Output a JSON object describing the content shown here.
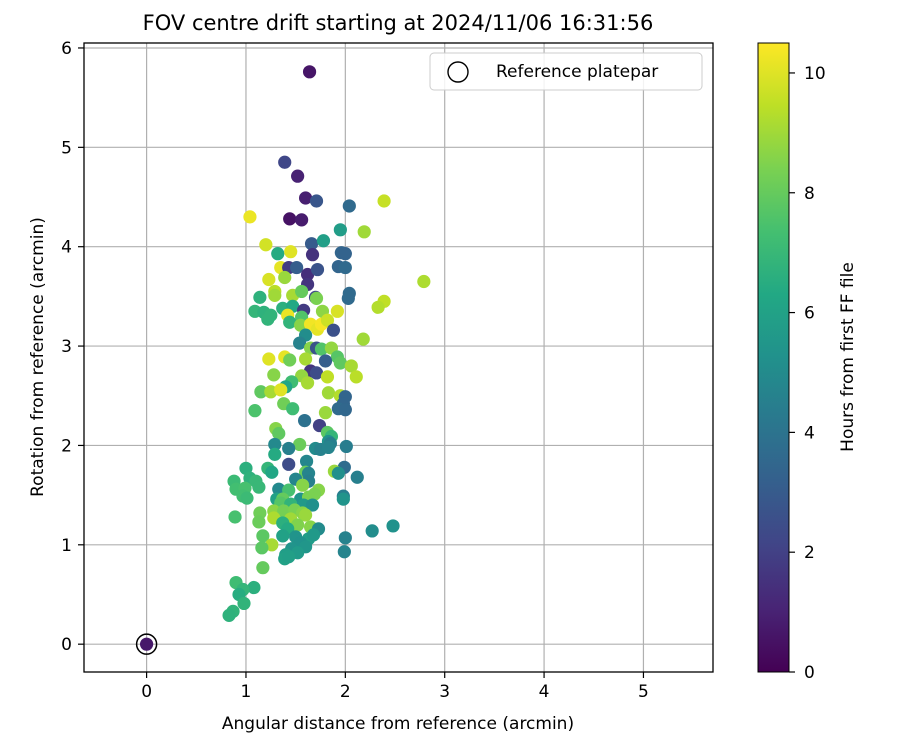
{
  "chart_data": {
    "type": "scatter",
    "title": "FOV centre drift starting at 2024/11/06 16:31:56",
    "xlabel": "Angular distance from reference (arcmin)",
    "ylabel": "Rotation from reference (arcmin)",
    "xlim": [
      -0.63,
      5.7
    ],
    "ylim": [
      -0.28,
      6.05
    ],
    "x_ticks": [
      0,
      1,
      2,
      3,
      4,
      5
    ],
    "y_ticks": [
      0,
      1,
      2,
      3,
      4,
      5,
      6
    ],
    "grid": true,
    "legend": {
      "placement": "top-right",
      "entries": [
        "Reference platepar"
      ]
    },
    "colorbar": {
      "label": "Hours from first FF file",
      "range": [
        0,
        10.5
      ],
      "ticks": [
        0,
        2,
        4,
        6,
        8,
        10
      ],
      "colormap": "viridis"
    },
    "reference_point": {
      "x": 0,
      "y": 0,
      "c": 0
    },
    "series": [
      {
        "points": [
          {
            "x": 1.64,
            "y": 5.76,
            "c": 0.6
          },
          {
            "x": 1.39,
            "y": 4.85,
            "c": 2.2
          },
          {
            "x": 1.52,
            "y": 4.71,
            "c": 1.0
          },
          {
            "x": 1.6,
            "y": 4.49,
            "c": 0.9
          },
          {
            "x": 1.71,
            "y": 4.46,
            "c": 2.8
          },
          {
            "x": 1.44,
            "y": 4.28,
            "c": 0.5
          },
          {
            "x": 1.56,
            "y": 4.27,
            "c": 0.8
          },
          {
            "x": 2.04,
            "y": 4.41,
            "c": 3.6
          },
          {
            "x": 1.04,
            "y": 4.3,
            "c": 10.2
          },
          {
            "x": 2.39,
            "y": 4.46,
            "c": 9.6
          },
          {
            "x": 2.19,
            "y": 4.15,
            "c": 9.0
          },
          {
            "x": 1.95,
            "y": 4.17,
            "c": 5.8
          },
          {
            "x": 1.2,
            "y": 4.02,
            "c": 9.8
          },
          {
            "x": 1.32,
            "y": 3.93,
            "c": 6.4
          },
          {
            "x": 1.45,
            "y": 3.95,
            "c": 10.0
          },
          {
            "x": 1.66,
            "y": 4.03,
            "c": 3.0
          },
          {
            "x": 1.78,
            "y": 4.06,
            "c": 5.9
          },
          {
            "x": 1.96,
            "y": 3.94,
            "c": 3.4
          },
          {
            "x": 2.0,
            "y": 3.93,
            "c": 3.3
          },
          {
            "x": 1.67,
            "y": 3.92,
            "c": 1.5
          },
          {
            "x": 1.35,
            "y": 3.79,
            "c": 10.1
          },
          {
            "x": 1.43,
            "y": 3.79,
            "c": 1.8
          },
          {
            "x": 1.51,
            "y": 3.79,
            "c": 3.1
          },
          {
            "x": 1.62,
            "y": 3.72,
            "c": 1.4
          },
          {
            "x": 1.72,
            "y": 3.77,
            "c": 2.7
          },
          {
            "x": 1.93,
            "y": 3.8,
            "c": 3.4
          },
          {
            "x": 2.0,
            "y": 3.79,
            "c": 3.6
          },
          {
            "x": 2.79,
            "y": 3.65,
            "c": 9.2
          },
          {
            "x": 1.23,
            "y": 3.67,
            "c": 9.9
          },
          {
            "x": 1.39,
            "y": 3.69,
            "c": 8.9
          },
          {
            "x": 1.62,
            "y": 3.62,
            "c": 1.6
          },
          {
            "x": 1.29,
            "y": 3.55,
            "c": 9.4
          },
          {
            "x": 1.47,
            "y": 3.51,
            "c": 9.1
          },
          {
            "x": 1.56,
            "y": 3.55,
            "c": 8.0
          },
          {
            "x": 1.7,
            "y": 3.49,
            "c": 2.3
          },
          {
            "x": 1.14,
            "y": 3.49,
            "c": 6.7
          },
          {
            "x": 1.29,
            "y": 3.51,
            "c": 9.0
          },
          {
            "x": 1.71,
            "y": 3.48,
            "c": 8.4
          },
          {
            "x": 2.04,
            "y": 3.53,
            "c": 3.6
          },
          {
            "x": 2.03,
            "y": 3.48,
            "c": 3.6
          },
          {
            "x": 2.39,
            "y": 3.45,
            "c": 9.5
          },
          {
            "x": 2.33,
            "y": 3.39,
            "c": 9.3
          },
          {
            "x": 1.09,
            "y": 3.35,
            "c": 6.9
          },
          {
            "x": 1.18,
            "y": 3.34,
            "c": 6.7
          },
          {
            "x": 1.25,
            "y": 3.31,
            "c": 6.8
          },
          {
            "x": 1.37,
            "y": 3.38,
            "c": 6.6
          },
          {
            "x": 1.47,
            "y": 3.4,
            "c": 6.3
          },
          {
            "x": 1.58,
            "y": 3.36,
            "c": 1.8
          },
          {
            "x": 1.42,
            "y": 3.31,
            "c": 10.2
          },
          {
            "x": 1.56,
            "y": 3.29,
            "c": 7.6
          },
          {
            "x": 1.77,
            "y": 3.35,
            "c": 8.7
          },
          {
            "x": 1.92,
            "y": 3.35,
            "c": 9.9
          },
          {
            "x": 1.22,
            "y": 3.27,
            "c": 6.8
          },
          {
            "x": 1.44,
            "y": 3.24,
            "c": 6.8
          },
          {
            "x": 1.55,
            "y": 3.21,
            "c": 8.6
          },
          {
            "x": 1.65,
            "y": 3.22,
            "c": 10.3
          },
          {
            "x": 1.72,
            "y": 3.17,
            "c": 10.1
          },
          {
            "x": 1.76,
            "y": 3.22,
            "c": 10.4
          },
          {
            "x": 1.82,
            "y": 3.26,
            "c": 9.7
          },
          {
            "x": 1.88,
            "y": 3.16,
            "c": 2.6
          },
          {
            "x": 2.18,
            "y": 3.07,
            "c": 9.0
          },
          {
            "x": 1.6,
            "y": 3.11,
            "c": 5.1
          },
          {
            "x": 1.54,
            "y": 3.03,
            "c": 4.6
          },
          {
            "x": 1.65,
            "y": 2.98,
            "c": 8.6
          },
          {
            "x": 1.71,
            "y": 2.98,
            "c": 2.7
          },
          {
            "x": 1.76,
            "y": 2.97,
            "c": 7.6
          },
          {
            "x": 1.86,
            "y": 2.98,
            "c": 8.8
          },
          {
            "x": 1.92,
            "y": 2.89,
            "c": 7.7
          },
          {
            "x": 1.39,
            "y": 2.89,
            "c": 10.1
          },
          {
            "x": 1.23,
            "y": 2.87,
            "c": 10.0
          },
          {
            "x": 1.44,
            "y": 2.86,
            "c": 8.2
          },
          {
            "x": 1.6,
            "y": 2.87,
            "c": 9.1
          },
          {
            "x": 1.8,
            "y": 2.85,
            "c": 3.1
          },
          {
            "x": 1.95,
            "y": 2.83,
            "c": 7.9
          },
          {
            "x": 2.06,
            "y": 2.8,
            "c": 9.1
          },
          {
            "x": 1.65,
            "y": 2.75,
            "c": 1.6
          },
          {
            "x": 1.71,
            "y": 2.73,
            "c": 2.4
          },
          {
            "x": 1.28,
            "y": 2.71,
            "c": 8.6
          },
          {
            "x": 1.56,
            "y": 2.7,
            "c": 8.8
          },
          {
            "x": 1.82,
            "y": 2.69,
            "c": 9.5
          },
          {
            "x": 2.11,
            "y": 2.69,
            "c": 9.4
          },
          {
            "x": 1.46,
            "y": 2.64,
            "c": 7.2
          },
          {
            "x": 1.62,
            "y": 2.63,
            "c": 9.1
          },
          {
            "x": 1.4,
            "y": 2.59,
            "c": 6.2
          },
          {
            "x": 1.15,
            "y": 2.54,
            "c": 7.9
          },
          {
            "x": 1.25,
            "y": 2.54,
            "c": 9.1
          },
          {
            "x": 1.35,
            "y": 2.56,
            "c": 10.0
          },
          {
            "x": 1.83,
            "y": 2.53,
            "c": 9.0
          },
          {
            "x": 1.95,
            "y": 2.5,
            "c": 9.3
          },
          {
            "x": 2.0,
            "y": 2.49,
            "c": 3.4
          },
          {
            "x": 1.98,
            "y": 2.42,
            "c": 3.4
          },
          {
            "x": 1.38,
            "y": 2.42,
            "c": 8.2
          },
          {
            "x": 1.47,
            "y": 2.37,
            "c": 7.2
          },
          {
            "x": 1.93,
            "y": 2.37,
            "c": 3.6
          },
          {
            "x": 2.0,
            "y": 2.36,
            "c": 3.5
          },
          {
            "x": 1.09,
            "y": 2.35,
            "c": 7.5
          },
          {
            "x": 1.8,
            "y": 2.33,
            "c": 8.9
          },
          {
            "x": 1.59,
            "y": 2.25,
            "c": 3.9
          },
          {
            "x": 1.74,
            "y": 2.2,
            "c": 2.0
          },
          {
            "x": 1.3,
            "y": 2.17,
            "c": 8.6
          },
          {
            "x": 1.33,
            "y": 2.12,
            "c": 7.9
          },
          {
            "x": 1.82,
            "y": 2.13,
            "c": 7.8
          },
          {
            "x": 1.86,
            "y": 2.09,
            "c": 6.9
          },
          {
            "x": 1.83,
            "y": 2.04,
            "c": 5.3
          },
          {
            "x": 1.85,
            "y": 2.02,
            "c": 4.5
          },
          {
            "x": 1.29,
            "y": 2.01,
            "c": 4.9
          },
          {
            "x": 1.54,
            "y": 2.01,
            "c": 8.1
          },
          {
            "x": 1.43,
            "y": 1.97,
            "c": 4.5
          },
          {
            "x": 1.7,
            "y": 1.97,
            "c": 5.0
          },
          {
            "x": 1.75,
            "y": 1.96,
            "c": 4.6
          },
          {
            "x": 1.83,
            "y": 1.98,
            "c": 4.7
          },
          {
            "x": 2.01,
            "y": 1.99,
            "c": 4.4
          },
          {
            "x": 1.29,
            "y": 1.91,
            "c": 6.4
          },
          {
            "x": 1.61,
            "y": 1.84,
            "c": 4.8
          },
          {
            "x": 1.43,
            "y": 1.81,
            "c": 2.4
          },
          {
            "x": 1.0,
            "y": 1.77,
            "c": 6.6
          },
          {
            "x": 1.22,
            "y": 1.77,
            "c": 6.9
          },
          {
            "x": 1.26,
            "y": 1.73,
            "c": 6.2
          },
          {
            "x": 1.6,
            "y": 1.73,
            "c": 8.1
          },
          {
            "x": 1.63,
            "y": 1.72,
            "c": 4.7
          },
          {
            "x": 1.99,
            "y": 1.78,
            "c": 3.7
          },
          {
            "x": 1.89,
            "y": 1.74,
            "c": 8.9
          },
          {
            "x": 1.93,
            "y": 1.72,
            "c": 5.2
          },
          {
            "x": 2.12,
            "y": 1.68,
            "c": 4.5
          },
          {
            "x": 0.88,
            "y": 1.64,
            "c": 7.1
          },
          {
            "x": 1.04,
            "y": 1.67,
            "c": 6.7
          },
          {
            "x": 1.1,
            "y": 1.64,
            "c": 7.0
          },
          {
            "x": 1.5,
            "y": 1.66,
            "c": 4.8
          },
          {
            "x": 1.63,
            "y": 1.64,
            "c": 4.5
          },
          {
            "x": 1.57,
            "y": 1.6,
            "c": 8.6
          },
          {
            "x": 0.9,
            "y": 1.56,
            "c": 7.3
          },
          {
            "x": 0.99,
            "y": 1.57,
            "c": 7.4
          },
          {
            "x": 1.13,
            "y": 1.58,
            "c": 7.0
          },
          {
            "x": 1.33,
            "y": 1.56,
            "c": 4.9
          },
          {
            "x": 1.43,
            "y": 1.55,
            "c": 7.4
          },
          {
            "x": 1.73,
            "y": 1.55,
            "c": 8.6
          },
          {
            "x": 1.69,
            "y": 1.51,
            "c": 8.4
          },
          {
            "x": 1.98,
            "y": 1.49,
            "c": 4.4
          },
          {
            "x": 1.98,
            "y": 1.46,
            "c": 5.4
          },
          {
            "x": 0.97,
            "y": 1.49,
            "c": 7.3
          },
          {
            "x": 1.01,
            "y": 1.47,
            "c": 7.1
          },
          {
            "x": 1.31,
            "y": 1.46,
            "c": 6.0
          },
          {
            "x": 1.37,
            "y": 1.46,
            "c": 8.0
          },
          {
            "x": 1.55,
            "y": 1.46,
            "c": 5.4
          },
          {
            "x": 1.63,
            "y": 1.48,
            "c": 8.4
          },
          {
            "x": 1.35,
            "y": 1.42,
            "c": 7.7
          },
          {
            "x": 1.45,
            "y": 1.41,
            "c": 6.8
          },
          {
            "x": 1.58,
            "y": 1.4,
            "c": 5.6
          },
          {
            "x": 1.67,
            "y": 1.4,
            "c": 5.2
          },
          {
            "x": 1.14,
            "y": 1.32,
            "c": 8.2
          },
          {
            "x": 1.28,
            "y": 1.34,
            "c": 8.7
          },
          {
            "x": 1.38,
            "y": 1.34,
            "c": 8.3
          },
          {
            "x": 1.49,
            "y": 1.35,
            "c": 8.4
          },
          {
            "x": 1.57,
            "y": 1.32,
            "c": 8.6
          },
          {
            "x": 1.6,
            "y": 1.3,
            "c": 8.9
          },
          {
            "x": 0.89,
            "y": 1.28,
            "c": 7.4
          },
          {
            "x": 1.28,
            "y": 1.27,
            "c": 9.2
          },
          {
            "x": 1.45,
            "y": 1.26,
            "c": 9.0
          },
          {
            "x": 1.13,
            "y": 1.23,
            "c": 8.1
          },
          {
            "x": 1.37,
            "y": 1.22,
            "c": 6.6
          },
          {
            "x": 1.52,
            "y": 1.2,
            "c": 8.5
          },
          {
            "x": 1.65,
            "y": 1.18,
            "c": 8.6
          },
          {
            "x": 1.73,
            "y": 1.16,
            "c": 5.0
          },
          {
            "x": 1.42,
            "y": 1.16,
            "c": 6.4
          },
          {
            "x": 2.27,
            "y": 1.14,
            "c": 5.1
          },
          {
            "x": 2.48,
            "y": 1.19,
            "c": 5.3
          },
          {
            "x": 1.17,
            "y": 1.09,
            "c": 7.8
          },
          {
            "x": 1.37,
            "y": 1.09,
            "c": 6.0
          },
          {
            "x": 1.5,
            "y": 1.08,
            "c": 5.4
          },
          {
            "x": 1.63,
            "y": 1.06,
            "c": 5.8
          },
          {
            "x": 1.68,
            "y": 1.1,
            "c": 5.6
          },
          {
            "x": 2.0,
            "y": 1.07,
            "c": 4.6
          },
          {
            "x": 1.55,
            "y": 1.02,
            "c": 5.3
          },
          {
            "x": 1.26,
            "y": 1.0,
            "c": 9.1
          },
          {
            "x": 1.16,
            "y": 0.97,
            "c": 7.8
          },
          {
            "x": 1.46,
            "y": 0.96,
            "c": 5.4
          },
          {
            "x": 1.6,
            "y": 0.98,
            "c": 5.5
          },
          {
            "x": 1.4,
            "y": 0.9,
            "c": 5.8
          },
          {
            "x": 1.52,
            "y": 0.92,
            "c": 5.7
          },
          {
            "x": 1.99,
            "y": 0.93,
            "c": 4.7
          },
          {
            "x": 1.39,
            "y": 0.86,
            "c": 6.0
          },
          {
            "x": 1.43,
            "y": 0.88,
            "c": 5.9
          },
          {
            "x": 1.17,
            "y": 0.77,
            "c": 8.0
          },
          {
            "x": 0.9,
            "y": 0.62,
            "c": 7.2
          },
          {
            "x": 1.08,
            "y": 0.57,
            "c": 6.6
          },
          {
            "x": 0.97,
            "y": 0.55,
            "c": 6.9
          },
          {
            "x": 0.93,
            "y": 0.5,
            "c": 6.5
          },
          {
            "x": 0.98,
            "y": 0.41,
            "c": 6.8
          },
          {
            "x": 0.87,
            "y": 0.33,
            "c": 6.8
          },
          {
            "x": 0.83,
            "y": 0.29,
            "c": 6.7
          },
          {
            "x": 0.0,
            "y": 0.0,
            "c": 0.7
          }
        ]
      }
    ]
  }
}
